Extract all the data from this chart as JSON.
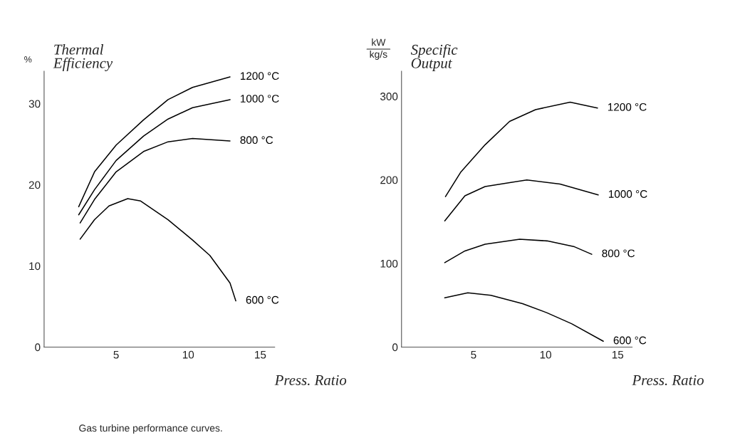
{
  "chart_data": [
    {
      "type": "line",
      "ylabel": "Thermal\nEfficiency",
      "xlabel": "Press. Ratio",
      "annotations": [
        "%",
        "Gas turbine performance curves."
      ],
      "xlim": [
        0,
        16
      ],
      "ylim": [
        0,
        34
      ],
      "xticks": [
        5,
        10,
        15
      ],
      "yticks": [
        0,
        10,
        20,
        30
      ],
      "grid": false,
      "legend": false,
      "marker": "none",
      "line_style": "solid",
      "series": [
        {
          "name": "1200 °C",
          "color": "#000000",
          "x": [
            2.4,
            3.5,
            5,
            6.9,
            8.6,
            10.3,
            12.9
          ],
          "values": [
            17.3,
            21.6,
            24.9,
            28.0,
            30.5,
            32.0,
            33.3
          ]
        },
        {
          "name": "1000 °C",
          "color": "#000000",
          "x": [
            2.4,
            3.5,
            5,
            6.9,
            8.6,
            10.3,
            12.9
          ],
          "values": [
            16.3,
            19.4,
            23.0,
            26.0,
            28.1,
            29.5,
            30.5
          ]
        },
        {
          "name": "800 °C",
          "color": "#000000",
          "x": [
            2.5,
            3.5,
            5,
            6.9,
            8.6,
            10.3,
            12.9
          ],
          "values": [
            15.3,
            18.2,
            21.6,
            24.1,
            25.3,
            25.7,
            25.4
          ]
        },
        {
          "name": "600 °C",
          "color": "#000000",
          "x": [
            2.5,
            3.5,
            4.5,
            5.8,
            6.7,
            8.6,
            10.3,
            11.5,
            12.9,
            13.3
          ],
          "values": [
            13.3,
            15.7,
            17.4,
            18.3,
            18.0,
            15.7,
            13.2,
            11.3,
            7.9,
            5.7
          ]
        }
      ]
    },
    {
      "type": "line",
      "ylabel": "Specific\nOutput",
      "xlabel": "Press. Ratio",
      "annotations": [
        "kW",
        "kg/s"
      ],
      "xlim": [
        0,
        16
      ],
      "ylim": [
        0,
        330
      ],
      "xticks": [
        5,
        10,
        15
      ],
      "yticks": [
        0,
        100,
        200,
        300
      ],
      "grid": false,
      "legend": false,
      "marker": "none",
      "line_style": "solid",
      "series": [
        {
          "name": "1200 °C",
          "color": "#000000",
          "x": [
            3.05,
            4.1,
            5.8,
            7.5,
            9.3,
            11.7,
            13.6
          ],
          "values": [
            180,
            209,
            242,
            270,
            284,
            293,
            286
          ]
        },
        {
          "name": "1000 °C",
          "color": "#000000",
          "x": [
            3.0,
            4.4,
            5.8,
            8.7,
            11.0,
            13.65
          ],
          "values": [
            151,
            181,
            192,
            200,
            195,
            182
          ]
        },
        {
          "name": "800 °C",
          "color": "#000000",
          "x": [
            3.0,
            4.4,
            5.8,
            8.2,
            10.1,
            12.0,
            13.2
          ],
          "values": [
            101,
            115,
            123,
            129,
            127,
            120,
            111
          ]
        },
        {
          "name": "600 °C",
          "color": "#000000",
          "x": [
            3.0,
            4.6,
            6.2,
            8.4,
            10.1,
            11.8,
            14.0
          ],
          "values": [
            59,
            65,
            62,
            52,
            41,
            28,
            7
          ]
        }
      ]
    }
  ]
}
